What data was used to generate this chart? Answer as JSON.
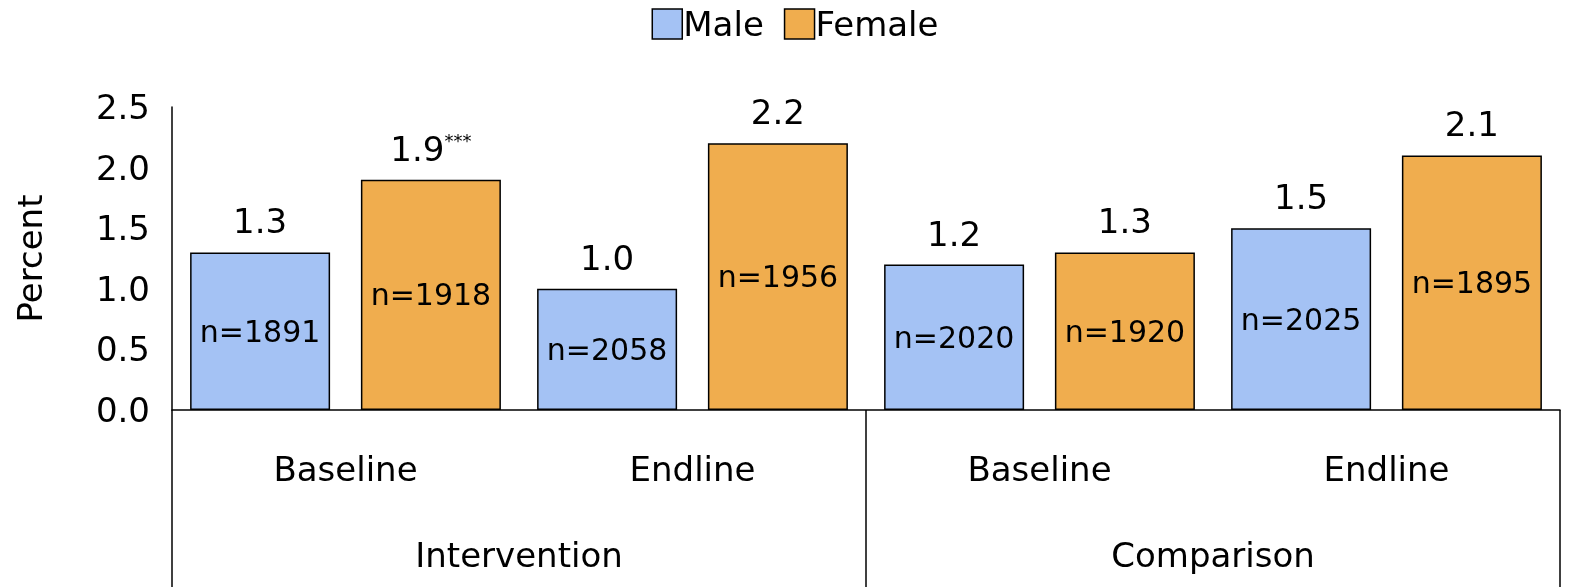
{
  "chart_data": {
    "type": "bar",
    "ylabel": "Percent",
    "categories": [
      "Baseline",
      "Endline",
      "Baseline",
      "Endline"
    ],
    "series": [
      {
        "name": "Male",
        "color": "#a4c2f4",
        "values": [
          1.3,
          1.0,
          1.2,
          1.5
        ],
        "value_labels": [
          "1.3",
          "1.0",
          "1.2",
          "1.5"
        ]
      },
      {
        "name": "Female",
        "color": "#f0ad4e",
        "values": [
          1.9,
          2.2,
          1.3,
          2.1
        ],
        "value_labels": [
          "1.9$^{***}$",
          "2.2",
          "1.3",
          "2.1"
        ]
      }
    ],
    "annotations": [
      "n=1891",
      "n=2058",
      "n=2020",
      "n=2025",
      "n=1918",
      "n=1956",
      "n=1920",
      "n=1895",
      "Intervention",
      "Comparison"
    ],
    "ylim": [
      0,
      2.5
    ],
    "yticks": [
      {
        "value": 0,
        "label": "0.0"
      },
      {
        "value": 0.5,
        "label": "0.5"
      },
      {
        "value": 1,
        "label": "1.0"
      },
      {
        "value": 1.5,
        "label": "1.5"
      },
      {
        "value": 2,
        "label": "2.0"
      },
      {
        "value": 2.5,
        "label": "2.5"
      }
    ],
    "grid": false,
    "legend": "top"
  }
}
